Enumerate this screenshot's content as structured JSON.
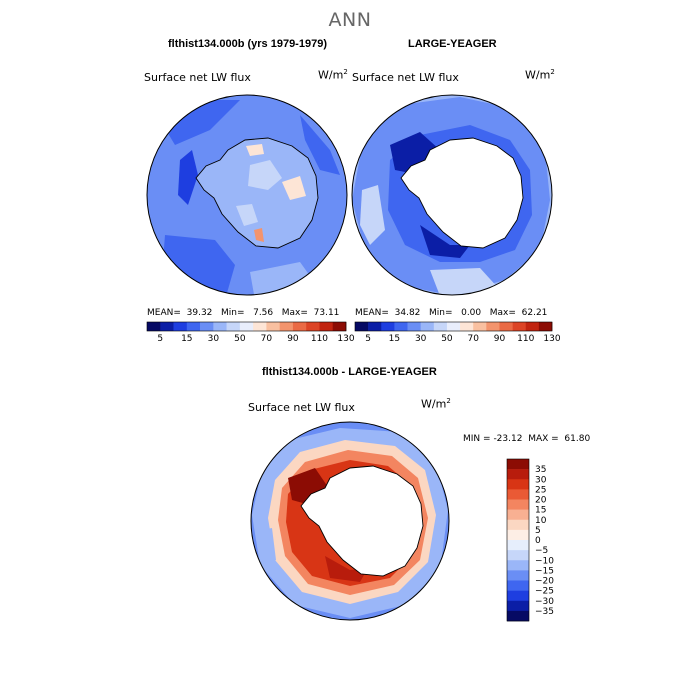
{
  "title": "ANN",
  "panels": {
    "top_left": {
      "case": "flthist134.000b (yrs 1979-1979)",
      "variable": "Surface net LW flux",
      "units_base": "W/m",
      "units_exp": "2",
      "stats": {
        "mean_label": "MEAN=",
        "mean": "39.32",
        "min_label": "Min=",
        "min": "7.56",
        "max_label": "Max=",
        "max": "73.11"
      }
    },
    "top_right": {
      "case": "LARGE-YEAGER",
      "variable": "Surface net LW flux",
      "units_base": "W/m",
      "units_exp": "2",
      "stats": {
        "mean_label": "MEAN=",
        "mean": "34.82",
        "min_label": "Min=",
        "min": "0.00",
        "max_label": "Max=",
        "max": "62.21"
      }
    },
    "bottom": {
      "case": "flthist134.000b - LARGE-YEAGER",
      "variable": "Surface net LW flux",
      "units_base": "W/m",
      "units_exp": "2",
      "stats": {
        "min_label": "MIN =",
        "min": "-23.12",
        "max_label": "MAX =",
        "max": "61.80"
      }
    }
  },
  "colorbars": {
    "top": {
      "colors": [
        "#060a64",
        "#0b1ea6",
        "#1e3ee0",
        "#3f66f0",
        "#6a8ef5",
        "#9ab6f8",
        "#c6d6f9",
        "#e9eefc",
        "#fde5d6",
        "#f9c0a0",
        "#f3946d",
        "#ea6a45",
        "#dc4426",
        "#c12410",
        "#8c0c04"
      ],
      "labels": [
        "5",
        "15",
        "30",
        "50",
        "70",
        "90",
        "110",
        "130"
      ]
    },
    "diff": {
      "colors": [
        "#8c0c04",
        "#b81c0c",
        "#d83515",
        "#ea5a35",
        "#f38560",
        "#f8b092",
        "#fbd7c2",
        "#fdeee5",
        "#e6eefc",
        "#c6d6f9",
        "#9ab6f8",
        "#6a8ef5",
        "#3f66f0",
        "#1e3ee0",
        "#0b1ea6",
        "#060a64"
      ],
      "labels": [
        "35",
        "30",
        "25",
        "20",
        "15",
        "10",
        "5",
        "0",
        "−5",
        "−10",
        "−15",
        "−20",
        "−25",
        "−30",
        "−35"
      ]
    }
  },
  "chart_data": [
    {
      "type": "heatmap",
      "title": "flthist134.000b (yrs 1979-1979)",
      "subtitle": "Surface net LW flux",
      "units": "W/m^2",
      "color_levels": [
        5,
        15,
        30,
        50,
        70,
        90,
        110,
        130
      ],
      "stats": {
        "mean": 39.32,
        "min": 7.56,
        "max": 73.11
      }
    },
    {
      "type": "heatmap",
      "title": "LARGE-YEAGER",
      "subtitle": "Surface net LW flux",
      "units": "W/m^2",
      "color_levels": [
        5,
        15,
        30,
        50,
        70,
        90,
        110,
        130
      ],
      "stats": {
        "mean": 34.82,
        "min": 0.0,
        "max": 62.21
      }
    },
    {
      "type": "heatmap",
      "title": "flthist134.000b - LARGE-YEAGER",
      "subtitle": "Surface net LW flux",
      "units": "W/m^2",
      "color_levels": [
        -35,
        -30,
        -25,
        -20,
        -15,
        -10,
        -5,
        0,
        5,
        10,
        15,
        20,
        25,
        30,
        35
      ],
      "stats": {
        "min": -23.12,
        "max": 61.8
      }
    }
  ]
}
